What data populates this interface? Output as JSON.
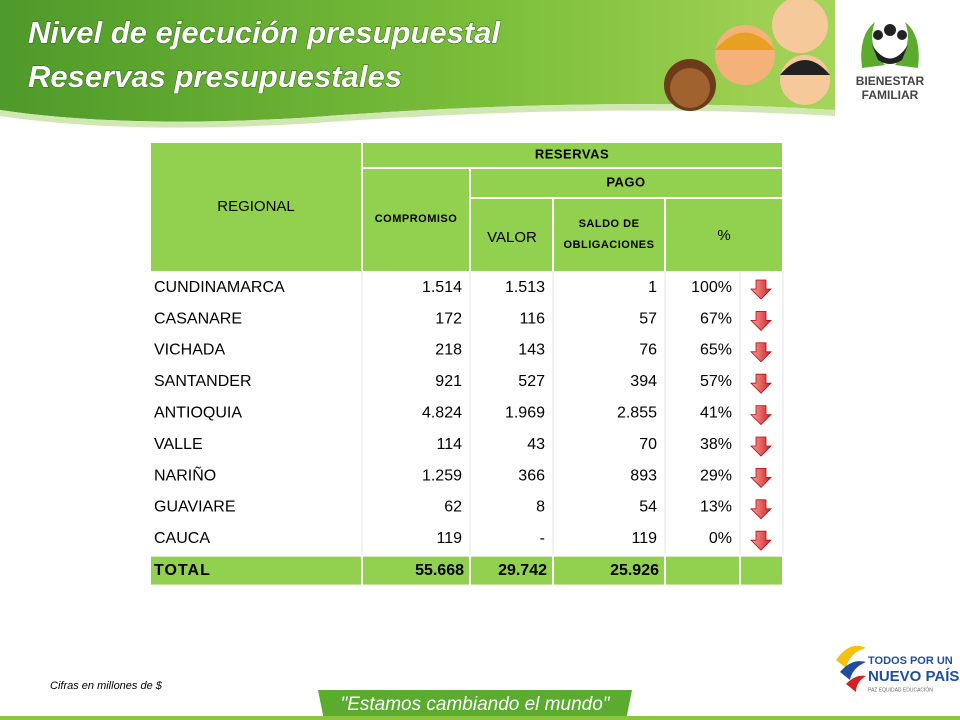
{
  "header": {
    "title_line1": "Nivel de ejecución presupuestal",
    "title_line2": "Reservas presupuestales",
    "logo_line1": "BIENESTAR",
    "logo_line2": "FAMILIAR"
  },
  "table": {
    "headers": {
      "regional": "REGIONAL",
      "reservas": "RESERVAS",
      "compromiso": "COMPROMISO",
      "pago": "PAGO",
      "valor": "VALOR",
      "saldo_line1": "SALDO DE",
      "saldo_line2": "OBLIGACIONES",
      "percent": "%"
    },
    "rows": [
      [
        "CUNDINAMARCA",
        "1.514",
        "1.513",
        "1",
        "100%"
      ],
      [
        "CASANARE",
        "172",
        "116",
        "57",
        "67%"
      ],
      [
        "VICHADA",
        "218",
        "143",
        "76",
        "65%"
      ],
      [
        "SANTANDER",
        "921",
        "527",
        "394",
        "57%"
      ],
      [
        "ANTIOQUIA",
        "4.824",
        "1.969",
        "2.855",
        "41%"
      ],
      [
        "VALLE",
        "114",
        "43",
        "70",
        "38%"
      ],
      [
        "NARIÑO",
        "1.259",
        "366",
        "893",
        "29%"
      ],
      [
        "GUAVIARE",
        "62",
        "8",
        "54",
        "13%"
      ],
      [
        "CAUCA",
        "119",
        "-",
        "119",
        "0%"
      ]
    ],
    "total": [
      "TOTAL",
      "55.668",
      "29.742",
      "25.926"
    ]
  },
  "footer": {
    "note": "Cifras en millones de $",
    "slogan": "\"Estamos cambiando el mundo\"",
    "brand_line1": "TODOS POR UN",
    "brand_line2": "NUEVO PAÍS",
    "brand_line3": "PAZ  EQUIDAD  EDUCACIÓN"
  }
}
